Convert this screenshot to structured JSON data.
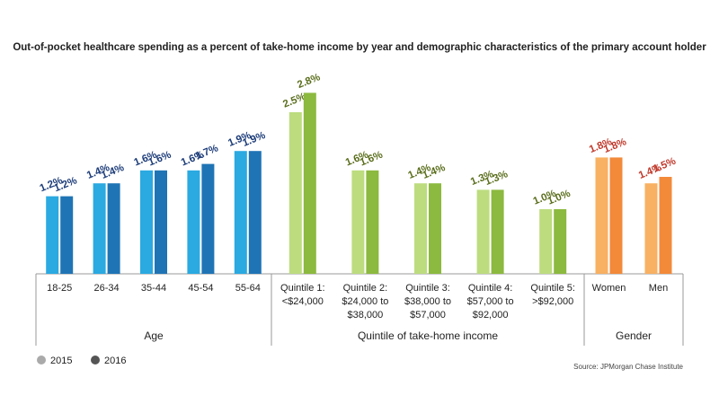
{
  "chart_data": {
    "type": "grouped-bar",
    "title": "Out-of-pocket healthcare spending as a percent of take-home income by year and demographic characteristics of the primary account holder",
    "source": "Source: JPMorgan Chase Institute",
    "series": [
      {
        "name": "2015",
        "color": "#aaaaaa"
      },
      {
        "name": "2016",
        "color": "#555555"
      }
    ],
    "groups": [
      {
        "name": "Age",
        "colors": [
          "#2ba9e1",
          "#1f74b5"
        ],
        "label_color": "#1b3b78",
        "categories": [
          [
            "18-25"
          ],
          [
            "26-34"
          ],
          [
            "35-44"
          ],
          [
            "45-54"
          ],
          [
            "55-64"
          ]
        ],
        "values": [
          [
            1.2,
            1.2
          ],
          [
            1.4,
            1.4
          ],
          [
            1.6,
            1.6
          ],
          [
            1.6,
            1.7
          ],
          [
            1.9,
            1.9
          ]
        ],
        "value_labels": [
          [
            "1.2%",
            "1.2%"
          ],
          [
            "1.4%",
            "1.4%"
          ],
          [
            "1.6%",
            "1.6%"
          ],
          [
            "1.6%",
            "1.7%"
          ],
          [
            "1.9%",
            "1.9%"
          ]
        ]
      },
      {
        "name": "Quintile of take-home income",
        "colors": [
          "#bcdc7e",
          "#8cb93f"
        ],
        "label_color": "#5a6e1c",
        "categories": [
          [
            "Quintile 1:",
            "<$24,000"
          ],
          [
            "Quintile 2:",
            "$24,000 to",
            "$38,000"
          ],
          [
            "Quintile 3:",
            "$38,000 to",
            "$57,000"
          ],
          [
            "Quintile 4:",
            "$57,000 to",
            "$92,000"
          ],
          [
            "Quintile 5:",
            ">$92,000"
          ]
        ],
        "values": [
          [
            2.5,
            2.8
          ],
          [
            1.6,
            1.6
          ],
          [
            1.4,
            1.4
          ],
          [
            1.3,
            1.3
          ],
          [
            1.0,
            1.0
          ]
        ],
        "value_labels": [
          [
            "2.5%",
            "2.8%"
          ],
          [
            "1.6%",
            "1.6%"
          ],
          [
            "1.4%",
            "1.4%"
          ],
          [
            "1.3%",
            "1.3%"
          ],
          [
            "1.0%",
            "1.0%"
          ]
        ]
      },
      {
        "name": "Gender",
        "colors": [
          "#f8b062",
          "#f28a3a"
        ],
        "label_color": "#c0392b",
        "categories": [
          [
            "Women"
          ],
          [
            "Men"
          ]
        ],
        "values": [
          [
            1.8,
            1.8
          ],
          [
            1.4,
            1.5
          ]
        ],
        "value_labels": [
          [
            "1.8%",
            "1.8%"
          ],
          [
            "1.4%",
            "1.5%"
          ]
        ]
      }
    ]
  }
}
